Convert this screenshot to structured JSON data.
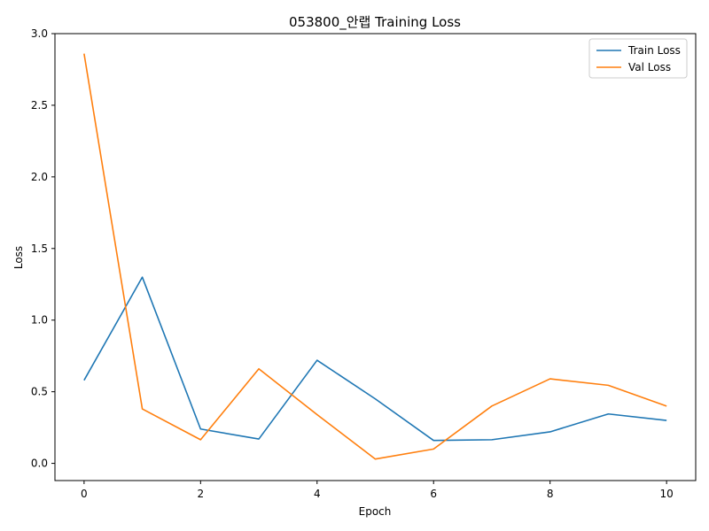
{
  "chart_data": {
    "type": "line",
    "title": "053800_안랩 Training Loss",
    "xlabel": "Epoch",
    "ylabel": "Loss",
    "x": [
      0,
      1,
      2,
      3,
      4,
      5,
      6,
      7,
      8,
      9,
      10
    ],
    "xlim": [
      -0.5,
      10.5
    ],
    "ylim": [
      -0.12,
      3.0
    ],
    "xticks": [
      0,
      2,
      4,
      6,
      8,
      10
    ],
    "yticks": [
      0.0,
      0.5,
      1.0,
      1.5,
      2.0,
      2.5,
      3.0
    ],
    "xtick_labels": [
      "0",
      "2",
      "4",
      "6",
      "8",
      "10"
    ],
    "ytick_labels": [
      "0.0",
      "0.5",
      "1.0",
      "1.5",
      "2.0",
      "2.5",
      "3.0"
    ],
    "grid": false,
    "legend_position": "top-right",
    "series": [
      {
        "name": "Train Loss",
        "color": "#1f77b4",
        "values": [
          0.58,
          1.3,
          0.24,
          0.17,
          0.72,
          0.45,
          0.16,
          0.165,
          0.22,
          0.345,
          0.3
        ]
      },
      {
        "name": "Val Loss",
        "color": "#ff7f0e",
        "values": [
          2.86,
          0.38,
          0.165,
          0.66,
          0.34,
          0.03,
          0.1,
          0.4,
          0.59,
          0.545,
          0.4
        ]
      }
    ]
  }
}
